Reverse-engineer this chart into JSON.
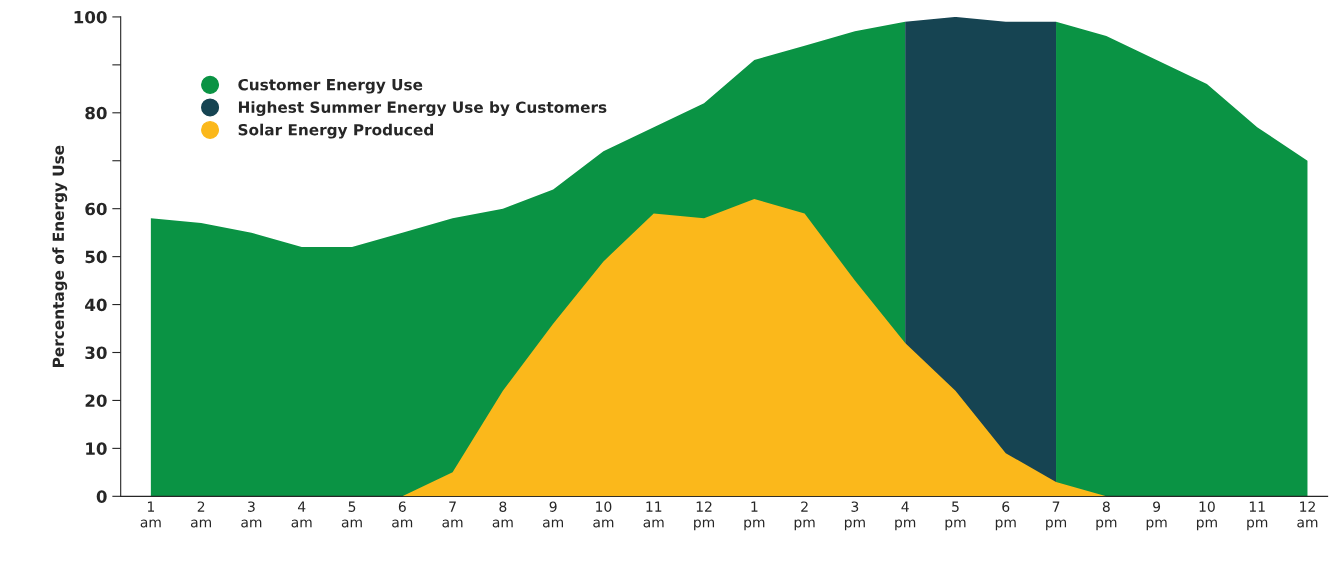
{
  "chart_data": {
    "type": "area",
    "ylabel": "Percentage of Energy Use",
    "categories": [
      "1\nam",
      "2\nam",
      "3\nam",
      "4\nam",
      "5\nam",
      "6\nam",
      "7\nam",
      "8\nam",
      "9\nam",
      "10\nam",
      "11\nam",
      "12\npm",
      "1\npm",
      "2\npm",
      "3\npm",
      "4\npm",
      "5\npm",
      "6\npm",
      "7\npm",
      "8\npm",
      "9\npm",
      "10\npm",
      "11\npm",
      "12\nam"
    ],
    "series": [
      {
        "name": "Customer Energy Use",
        "color": "#0a9344",
        "values": [
          58,
          57,
          55,
          52,
          52,
          55,
          58,
          60,
          64,
          72,
          77,
          82,
          91,
          94,
          97,
          99,
          null,
          null,
          99,
          96,
          91,
          86,
          77,
          70
        ]
      },
      {
        "name": "Highest Summer Energy Use by Customers",
        "color": "#164452",
        "values": [
          null,
          null,
          null,
          null,
          null,
          null,
          null,
          null,
          null,
          null,
          null,
          null,
          null,
          null,
          null,
          99,
          100,
          99,
          99,
          null,
          null,
          null,
          null,
          null
        ]
      },
      {
        "name": "Solar Energy Produced",
        "color": "#fbb81b",
        "values": [
          0,
          0,
          0,
          0,
          0,
          0,
          5,
          22,
          36,
          49,
          59,
          58,
          62,
          59,
          45,
          32,
          22,
          9,
          3,
          0,
          0,
          0,
          0,
          0
        ]
      }
    ],
    "ylim": [
      0,
      100
    ],
    "yticks": [
      0,
      10,
      20,
      30,
      40,
      50,
      60,
      {
        "value": 70,
        "label": null
      },
      80,
      {
        "value": 90,
        "label": null
      },
      100
    ],
    "legend": "top left",
    "grid": false
  }
}
